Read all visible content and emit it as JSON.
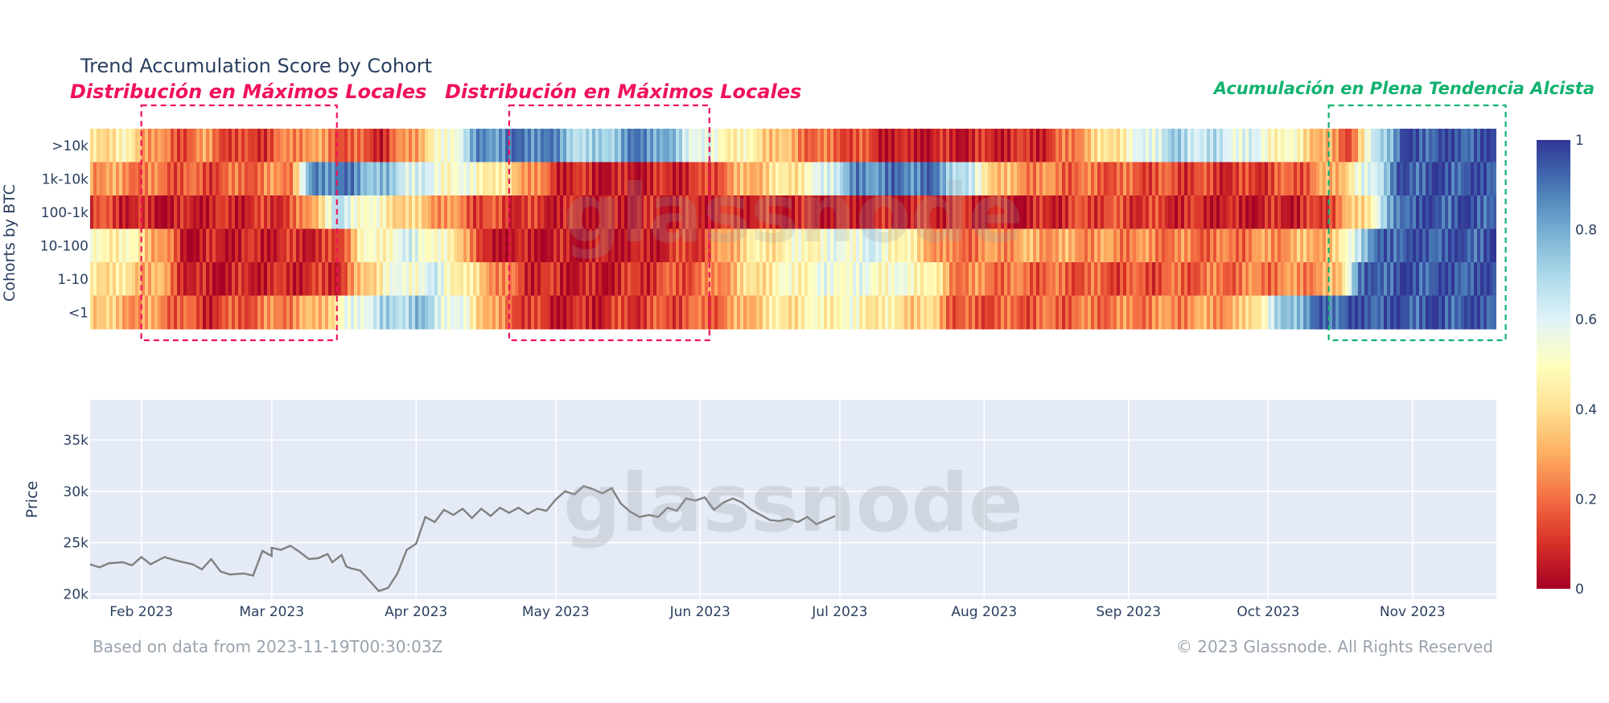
{
  "title": "Trend Accumulation Score by Cohort",
  "annotations": [
    {
      "text": "Distribución en Máximos Locales",
      "color": "#f0125a",
      "date_start": "2023-02-01",
      "date_end": "2023-03-15"
    },
    {
      "text": "Distribución en Máximos Locales",
      "color": "#f0125a",
      "date_start": "2023-04-21",
      "date_end": "2023-06-03"
    },
    {
      "text": "Acumulación en Plena Tendencia Alcista",
      "color": "#12b26e",
      "date_start": "2023-10-14",
      "date_end": "2023-11-21"
    }
  ],
  "watermark": "glassnode",
  "footer": {
    "left": "Based on data from 2023-11-19T00:30:03Z",
    "right": "© 2023 Glassnode. All Rights Reserved"
  },
  "chart_data": [
    {
      "type": "heatmap",
      "title": "Trend Accumulation Score by Cohort",
      "ylabel": "Cohorts by BTC",
      "cohorts": [
        ">10k",
        "1k-10k",
        "100-1k",
        "10-100",
        "1-10",
        "<1"
      ],
      "x_range": [
        "2023-01-21",
        "2023-11-19"
      ],
      "colorbar": {
        "min": 0,
        "max": 1,
        "ticks": [
          "1",
          "0.8",
          "0.6",
          "0.4",
          "0.2",
          "0"
        ]
      },
      "colorscale": [
        "#a50026",
        "#d73027",
        "#f46d43",
        "#fdae61",
        "#fee090",
        "#ffffbf",
        "#e0f3f8",
        "#abd9e9",
        "#74add1",
        "#4575b4",
        "#313695"
      ],
      "segments": {
        ">10k": [
          [
            "2023-01-21",
            0.4
          ],
          [
            "2023-01-28",
            0.45
          ],
          [
            "2023-02-03",
            0.3
          ],
          [
            "2023-02-08",
            0.15
          ],
          [
            "2023-02-15",
            0.25
          ],
          [
            "2023-02-22",
            0.1
          ],
          [
            "2023-03-01",
            0.15
          ],
          [
            "2023-03-08",
            0.3
          ],
          [
            "2023-03-15",
            0.2
          ],
          [
            "2023-03-25",
            0.1
          ],
          [
            "2023-04-10",
            0.6
          ],
          [
            "2023-04-15",
            0.85
          ],
          [
            "2023-04-28",
            0.9
          ],
          [
            "2023-05-08",
            0.65
          ],
          [
            "2023-05-20",
            0.9
          ],
          [
            "2023-06-02",
            0.55
          ],
          [
            "2023-06-15",
            0.4
          ],
          [
            "2023-06-25",
            0.2
          ],
          [
            "2023-07-05",
            0.15
          ],
          [
            "2023-07-12",
            0.05
          ],
          [
            "2023-08-15",
            0.1
          ],
          [
            "2023-08-22",
            0.3
          ],
          [
            "2023-09-01",
            0.5
          ],
          [
            "2023-09-10",
            0.7
          ],
          [
            "2023-09-25",
            0.6
          ],
          [
            "2023-10-08",
            0.45
          ],
          [
            "2023-10-18",
            0.15
          ],
          [
            "2023-10-25",
            0.7
          ],
          [
            "2023-10-30",
            0.95
          ]
        ],
        "1k-10k": [
          [
            "2023-01-21",
            0.3
          ],
          [
            "2023-01-28",
            0.25
          ],
          [
            "2023-02-05",
            0.2
          ],
          [
            "2023-02-15",
            0.15
          ],
          [
            "2023-03-05",
            0.25
          ],
          [
            "2023-03-10",
            0.85
          ],
          [
            "2023-03-15",
            0.9
          ],
          [
            "2023-04-05",
            0.55
          ],
          [
            "2023-04-15",
            0.5
          ],
          [
            "2023-04-25",
            0.3
          ],
          [
            "2023-05-01",
            0.1
          ],
          [
            "2023-05-15",
            0.05
          ],
          [
            "2023-06-01",
            0.1
          ],
          [
            "2023-06-10",
            0.3
          ],
          [
            "2023-06-25",
            0.5
          ],
          [
            "2023-07-05",
            0.85
          ],
          [
            "2023-07-20",
            0.9
          ],
          [
            "2023-07-28",
            0.65
          ],
          [
            "2023-08-05",
            0.3
          ],
          [
            "2023-08-20",
            0.2
          ],
          [
            "2023-09-10",
            0.15
          ],
          [
            "2023-09-25",
            0.1
          ],
          [
            "2023-10-10",
            0.2
          ],
          [
            "2023-10-18",
            0.4
          ],
          [
            "2023-10-24",
            0.65
          ],
          [
            "2023-10-30",
            0.95
          ]
        ],
        "100-1k": [
          [
            "2023-01-21",
            0.15
          ],
          [
            "2023-01-28",
            0.1
          ],
          [
            "2023-02-05",
            0.05
          ],
          [
            "2023-03-01",
            0.1
          ],
          [
            "2023-03-08",
            0.2
          ],
          [
            "2023-03-15",
            0.65
          ],
          [
            "2023-03-25",
            0.45
          ],
          [
            "2023-04-05",
            0.3
          ],
          [
            "2023-04-15",
            0.15
          ],
          [
            "2023-04-25",
            0.1
          ],
          [
            "2023-05-10",
            0.05
          ],
          [
            "2023-06-10",
            0.1
          ],
          [
            "2023-07-01",
            0.05
          ],
          [
            "2023-07-25",
            0.1
          ],
          [
            "2023-08-10",
            0.05
          ],
          [
            "2023-08-25",
            0.15
          ],
          [
            "2023-09-10",
            0.1
          ],
          [
            "2023-09-25",
            0.05
          ],
          [
            "2023-10-12",
            0.1
          ],
          [
            "2023-10-20",
            0.35
          ],
          [
            "2023-10-24",
            0.55
          ],
          [
            "2023-10-30",
            0.95
          ]
        ],
        "10-100": [
          [
            "2023-01-21",
            0.45
          ],
          [
            "2023-01-28",
            0.5
          ],
          [
            "2023-02-05",
            0.3
          ],
          [
            "2023-02-10",
            0.05
          ],
          [
            "2023-03-15",
            0.1
          ],
          [
            "2023-03-20",
            0.45
          ],
          [
            "2023-04-01",
            0.6
          ],
          [
            "2023-04-12",
            0.35
          ],
          [
            "2023-04-15",
            0.05
          ],
          [
            "2023-05-20",
            0.05
          ],
          [
            "2023-06-02",
            0.15
          ],
          [
            "2023-06-10",
            0.4
          ],
          [
            "2023-06-25",
            0.5
          ],
          [
            "2023-07-08",
            0.6
          ],
          [
            "2023-07-15",
            0.45
          ],
          [
            "2023-07-25",
            0.2
          ],
          [
            "2023-08-10",
            0.3
          ],
          [
            "2023-09-01",
            0.25
          ],
          [
            "2023-09-20",
            0.2
          ],
          [
            "2023-10-08",
            0.3
          ],
          [
            "2023-10-16",
            0.35
          ],
          [
            "2023-10-21",
            0.75
          ],
          [
            "2023-10-27",
            0.95
          ]
        ],
        "1-10": [
          [
            "2023-01-21",
            0.45
          ],
          [
            "2023-01-28",
            0.4
          ],
          [
            "2023-02-05",
            0.3
          ],
          [
            "2023-02-12",
            0.05
          ],
          [
            "2023-03-15",
            0.1
          ],
          [
            "2023-03-25",
            0.5
          ],
          [
            "2023-04-05",
            0.6
          ],
          [
            "2023-04-15",
            0.35
          ],
          [
            "2023-04-25",
            0.1
          ],
          [
            "2023-05-10",
            0.05
          ],
          [
            "2023-06-02",
            0.2
          ],
          [
            "2023-06-15",
            0.45
          ],
          [
            "2023-06-30",
            0.55
          ],
          [
            "2023-07-20",
            0.5
          ],
          [
            "2023-07-25",
            0.25
          ],
          [
            "2023-08-10",
            0.2
          ],
          [
            "2023-09-01",
            0.15
          ],
          [
            "2023-09-20",
            0.2
          ],
          [
            "2023-10-08",
            0.25
          ],
          [
            "2023-10-16",
            0.3
          ],
          [
            "2023-10-20",
            0.85
          ],
          [
            "2023-10-25",
            0.95
          ]
        ],
        "<1": [
          [
            "2023-01-21",
            0.4
          ],
          [
            "2023-01-28",
            0.3
          ],
          [
            "2023-02-05",
            0.25
          ],
          [
            "2023-02-15",
            0.1
          ],
          [
            "2023-03-10",
            0.3
          ],
          [
            "2023-03-20",
            0.6
          ],
          [
            "2023-04-01",
            0.75
          ],
          [
            "2023-04-12",
            0.5
          ],
          [
            "2023-04-20",
            0.2
          ],
          [
            "2023-05-01",
            0.05
          ],
          [
            "2023-06-05",
            0.2
          ],
          [
            "2023-06-15",
            0.4
          ],
          [
            "2023-07-01",
            0.5
          ],
          [
            "2023-07-22",
            0.35
          ],
          [
            "2023-07-26",
            0.15
          ],
          [
            "2023-08-20",
            0.2
          ],
          [
            "2023-09-10",
            0.25
          ],
          [
            "2023-09-25",
            0.3
          ],
          [
            "2023-10-05",
            0.75
          ],
          [
            "2023-10-12",
            0.9
          ],
          [
            "2023-10-18",
            0.95
          ]
        ]
      }
    },
    {
      "type": "line",
      "ylabel": "Price",
      "x_ticks": [
        "Feb 2023",
        "Mar 2023",
        "Apr 2023",
        "May 2023",
        "Jun 2023",
        "Jul 2023",
        "Aug 2023",
        "Sep 2023",
        "Oct 2023",
        "Nov 2023"
      ],
      "x_tick_dates": [
        "2023-02-01",
        "2023-03-01",
        "2023-04-01",
        "2023-05-01",
        "2023-06-01",
        "2023-07-01",
        "2023-08-01",
        "2023-09-01",
        "2023-10-01",
        "2023-11-01"
      ],
      "y_ticks": [
        "20k",
        "25k",
        "30k",
        "35k"
      ],
      "y_tick_values": [
        20000,
        25000,
        30000,
        35000
      ],
      "ylim": [
        19500,
        38900
      ],
      "x_range": [
        "2023-01-21",
        "2023-11-19"
      ],
      "line_color": "#808080",
      "series": [
        {
          "points": [
            [
              "2023-01-21",
              22900
            ],
            [
              "2023-01-23",
              22600
            ],
            [
              "2023-01-25",
              23000
            ],
            [
              "2023-01-28",
              23100
            ],
            [
              "2023-01-30",
              22800
            ],
            [
              "2023-02-01",
              23600
            ],
            [
              "2023-02-03",
              22900
            ],
            [
              "2023-02-06",
              23600
            ],
            [
              "2023-02-09",
              23200
            ],
            [
              "2023-02-12",
              22900
            ],
            [
              "2023-02-14",
              22400
            ],
            [
              "2023-02-16",
              23400
            ],
            [
              "2023-02-18",
              22200
            ],
            [
              "2023-02-20",
              21900
            ],
            [
              "2023-02-23",
              22000
            ],
            [
              "2023-02-25",
              21800
            ],
            [
              "2023-02-27",
              24200
            ],
            [
              "2023-02-29",
              23700
            ],
            [
              "2023-03-01",
              24500
            ],
            [
              "2023-03-03",
              24300
            ],
            [
              "2023-03-05",
              24700
            ],
            [
              "2023-03-07",
              24100
            ],
            [
              "2023-03-09",
              23400
            ],
            [
              "2023-03-11",
              23500
            ],
            [
              "2023-03-13",
              23900
            ],
            [
              "2023-03-14",
              23100
            ],
            [
              "2023-03-16",
              23800
            ],
            [
              "2023-03-17",
              22700
            ],
            [
              "2023-03-18",
              22500
            ],
            [
              "2023-03-20",
              22300
            ],
            [
              "2023-03-22",
              21300
            ],
            [
              "2023-03-24",
              20300
            ],
            [
              "2023-03-26",
              20600
            ],
            [
              "2023-03-28",
              22000
            ],
            [
              "2023-03-30",
              24300
            ],
            [
              "2023-04-01",
              24900
            ],
            [
              "2023-04-03",
              27500
            ],
            [
              "2023-04-05",
              27000
            ],
            [
              "2023-04-07",
              28200
            ],
            [
              "2023-04-09",
              27700
            ],
            [
              "2023-04-11",
              28300
            ],
            [
              "2023-04-13",
              27400
            ],
            [
              "2023-04-15",
              28300
            ],
            [
              "2023-04-17",
              27600
            ],
            [
              "2023-04-19",
              28400
            ],
            [
              "2023-04-21",
              27900
            ],
            [
              "2023-04-23",
              28400
            ],
            [
              "2023-04-25",
              27800
            ],
            [
              "2023-04-27",
              28300
            ],
            [
              "2023-04-29",
              28100
            ],
            [
              "2023-05-01",
              29200
            ],
            [
              "2023-05-03",
              30000
            ],
            [
              "2023-05-05",
              29700
            ],
            [
              "2023-05-07",
              30500
            ],
            [
              "2023-05-09",
              30200
            ],
            [
              "2023-05-11",
              29800
            ],
            [
              "2023-05-13",
              30300
            ],
            [
              "2023-05-15",
              28800
            ],
            [
              "2023-05-17",
              28000
            ],
            [
              "2023-05-19",
              27500
            ],
            [
              "2023-05-21",
              27700
            ],
            [
              "2023-05-23",
              27500
            ],
            [
              "2023-05-25",
              28400
            ],
            [
              "2023-05-27",
              28100
            ],
            [
              "2023-05-29",
              29300
            ],
            [
              "2023-05-31",
              29100
            ],
            [
              "2023-06-02",
              29400
            ],
            [
              "2023-06-04",
              28200
            ],
            [
              "2023-06-06",
              28900
            ],
            [
              "2023-06-08",
              29300
            ],
            [
              "2023-06-10",
              28900
            ],
            [
              "2023-06-12",
              28200
            ],
            [
              "2023-06-14",
              27700
            ],
            [
              "2023-06-16",
              27200
            ],
            [
              "2023-06-18",
              27100
            ],
            [
              "2023-06-20",
              27300
            ],
            [
              "2023-06-22",
              27000
            ],
            [
              "2023-06-24",
              27500
            ],
            [
              "2023-06-26",
              26800
            ],
            [
              "2023-06-28",
              27200
            ],
            [
              "2023-06-30",
              27600
            ]
          ]
        }
      ]
    }
  ]
}
